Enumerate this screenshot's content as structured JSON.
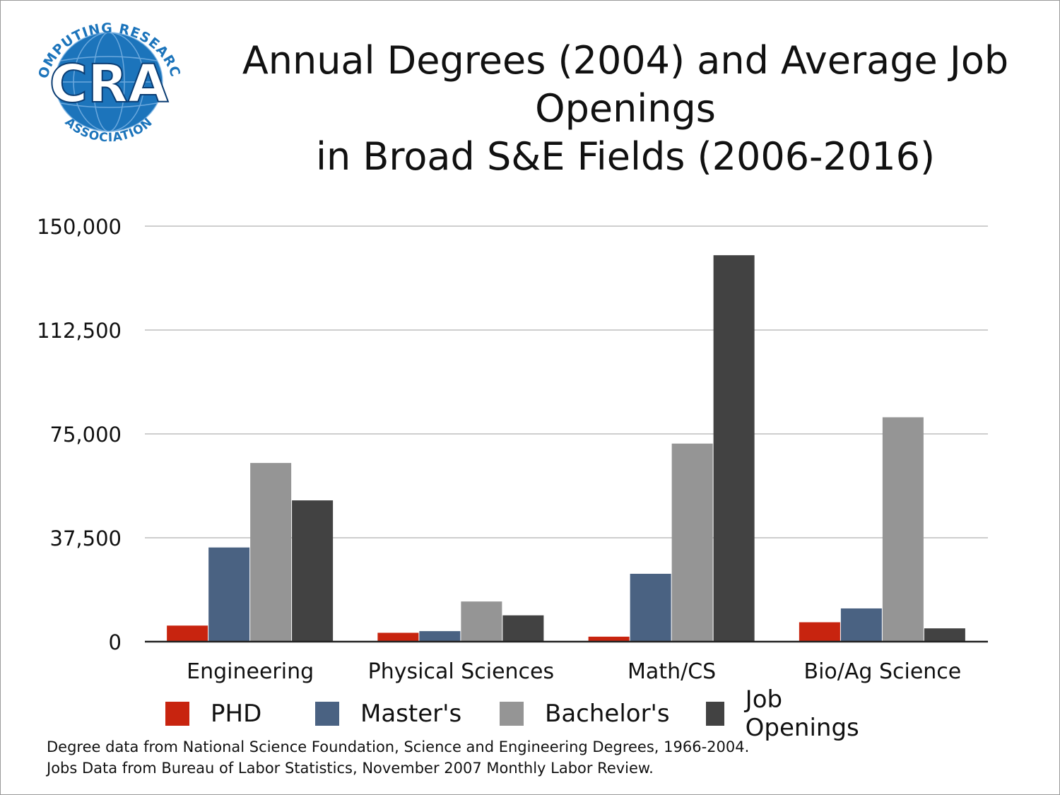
{
  "logo": {
    "text": "CRA",
    "top_arc": "COMPUTING RESEARCH",
    "bottom_arc": "ASSOCIATION",
    "colors": {
      "blue": "#1c74bb",
      "dark": "#0b3d73"
    }
  },
  "title": {
    "line1": "Annual Degrees (2004) and Average Job Openings",
    "line2": "in Broad S&E Fields (2006-2016)"
  },
  "footnote": {
    "line1": "Degree data from National Science Foundation, Science and Engineering Degrees, 1966-2004.",
    "line2": "Jobs Data from Bureau of Labor Statistics, November 2007 Monthly Labor Review."
  },
  "chart_data": {
    "type": "bar",
    "title": "Annual Degrees (2004) and Average Job Openings in Broad S&E Fields (2006-2016)",
    "xlabel": "",
    "ylabel": "",
    "ylim": [
      0,
      150000
    ],
    "yticks": [
      0,
      37500,
      75000,
      112500,
      150000
    ],
    "ytick_labels": [
      "0",
      "37,500",
      "75,000",
      "112,500",
      "150,000"
    ],
    "grid": true,
    "legend_position": "bottom",
    "categories": [
      "Engineering",
      "Physical Sciences",
      "Math/CS",
      "Bio/Ag Science"
    ],
    "series": [
      {
        "name": "PHD",
        "color": "#c8240f",
        "values": [
          5800,
          3200,
          1800,
          7000
        ]
      },
      {
        "name": "Master's",
        "color": "#4a6282",
        "values": [
          34000,
          3800,
          24500,
          12000
        ]
      },
      {
        "name": "Bachelor's",
        "color": "#959595",
        "values": [
          64500,
          14500,
          71500,
          81000
        ]
      },
      {
        "name": "Job Openings",
        "color": "#424242",
        "values": [
          51000,
          9500,
          139500,
          4800
        ]
      }
    ]
  }
}
